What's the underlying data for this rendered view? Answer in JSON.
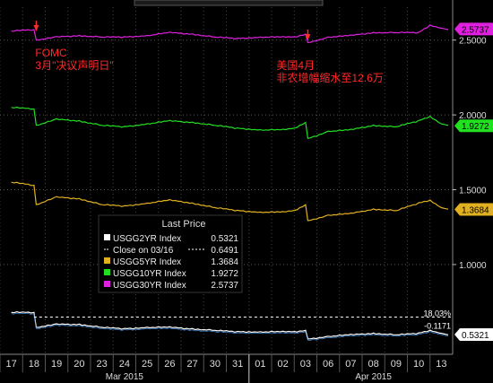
{
  "chart_data": {
    "type": "line",
    "title": "",
    "xlabel": "",
    "ylabel": "",
    "ylim": [
      0.4,
      2.72
    ],
    "y_ticks": [
      "2.5000",
      "2.0000",
      "1.5000",
      "1.0000"
    ],
    "y_tick_values": [
      2.5,
      2.0,
      1.5,
      1.0
    ],
    "x_day_labels": [
      "17",
      "18",
      "19",
      "20",
      "23",
      "24",
      "25",
      "26",
      "27",
      "30",
      "31",
      "01",
      "02",
      "03",
      "06",
      "07",
      "08",
      "09",
      "10",
      "13"
    ],
    "x_month_labels": [
      {
        "label": "Mar 2015",
        "day_index": 5
      },
      {
        "label": "Apr 2015",
        "day_index": 16
      }
    ],
    "series": [
      {
        "name": "USGG30YR Index",
        "color": "#e020e0",
        "last": "2.5737",
        "x": [
          0,
          1,
          1.1,
          2,
          3,
          4,
          5,
          6,
          7,
          8,
          9,
          10,
          11,
          12,
          12.5,
          13,
          13.1,
          14,
          15,
          16,
          17,
          18,
          18.5,
          19,
          19.3
        ],
        "values": [
          2.56,
          2.57,
          2.5,
          2.52,
          2.53,
          2.52,
          2.52,
          2.53,
          2.55,
          2.54,
          2.52,
          2.51,
          2.52,
          2.52,
          2.52,
          2.54,
          2.48,
          2.52,
          2.53,
          2.55,
          2.55,
          2.55,
          2.6,
          2.58,
          2.57
        ]
      },
      {
        "name": "USGG10YR Index",
        "color": "#20e020",
        "last": "1.9272",
        "x": [
          0,
          1,
          1.1,
          2,
          3,
          4,
          5,
          6,
          7,
          8,
          9,
          10,
          11,
          12,
          12.5,
          13,
          13.1,
          14,
          15,
          16,
          17,
          18,
          18.5,
          19,
          19.3
        ],
        "values": [
          2.05,
          2.04,
          1.93,
          1.97,
          1.96,
          1.93,
          1.92,
          1.94,
          1.96,
          1.95,
          1.93,
          1.91,
          1.9,
          1.9,
          1.91,
          1.95,
          1.84,
          1.89,
          1.9,
          1.93,
          1.92,
          1.96,
          1.99,
          1.94,
          1.93
        ]
      },
      {
        "name": "USGG5YR Index",
        "color": "#e0b020",
        "last": "1.3684",
        "x": [
          0,
          1,
          1.1,
          2,
          3,
          4,
          5,
          6,
          7,
          8,
          9,
          10,
          11,
          12,
          12.5,
          13,
          13.1,
          14,
          15,
          16,
          17,
          18,
          18.5,
          19,
          19.3
        ],
        "values": [
          1.55,
          1.53,
          1.4,
          1.45,
          1.44,
          1.4,
          1.39,
          1.41,
          1.43,
          1.41,
          1.38,
          1.36,
          1.35,
          1.35,
          1.36,
          1.4,
          1.29,
          1.33,
          1.34,
          1.37,
          1.36,
          1.41,
          1.43,
          1.38,
          1.37
        ]
      },
      {
        "name": "USGG2YR Index",
        "color": "#ffffff",
        "last": "0.5321",
        "x": [
          0,
          1,
          1.1,
          2,
          3,
          4,
          5,
          6,
          7,
          8,
          9,
          10,
          11,
          12,
          12.5,
          13,
          13.1,
          14,
          15,
          16,
          17,
          18,
          18.5,
          19,
          19.3
        ],
        "values": [
          0.68,
          0.68,
          0.58,
          0.6,
          0.6,
          0.58,
          0.57,
          0.58,
          0.58,
          0.57,
          0.56,
          0.55,
          0.55,
          0.55,
          0.55,
          0.56,
          0.5,
          0.52,
          0.53,
          0.54,
          0.53,
          0.54,
          0.56,
          0.54,
          0.53
        ]
      }
    ],
    "close_line": {
      "value": 0.6491,
      "label": "18.03%",
      "change": "-0.1171"
    },
    "legend": {
      "title": "Last Price",
      "placement": "center-left",
      "items": [
        {
          "name": "USGG2YR Index",
          "value": "0.5321",
          "color": "#ffffff"
        },
        {
          "name": "Close on 03/16",
          "value": "0.6491",
          "color": "#ffffff",
          "dashed": true
        },
        {
          "name": "USGG5YR Index",
          "value": "1.3684",
          "color": "#e0b020"
        },
        {
          "name": "USGG10YR Index",
          "value": "1.9272",
          "color": "#20e020"
        },
        {
          "name": "USGG30YR Index",
          "value": "2.5737",
          "color": "#e020e0"
        }
      ]
    },
    "annotations": [
      {
        "lines": [
          "FOMC",
          "3月\"决议声明日\""
        ],
        "day_index": 1.1,
        "color": "#ff2a2a"
      },
      {
        "lines": [
          "美国4月",
          "非农增幅缩水至12.6万"
        ],
        "day_index": 13.1,
        "color": "#ff2a2a"
      }
    ]
  }
}
